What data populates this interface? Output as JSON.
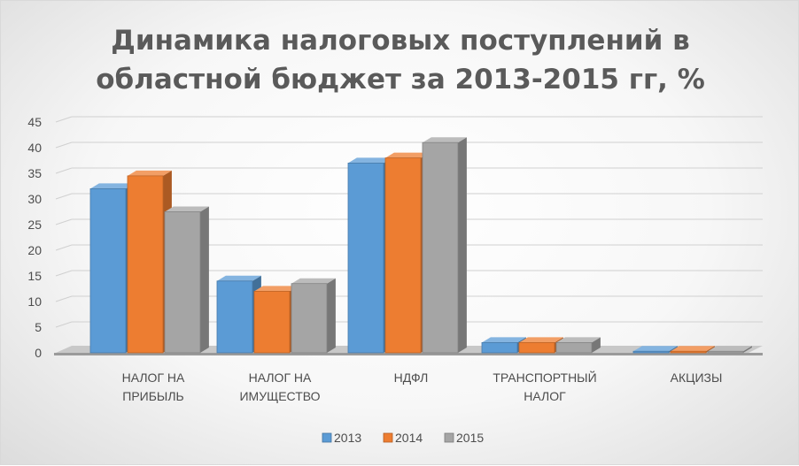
{
  "chart_data": {
    "type": "bar",
    "title_lines": [
      "Динамика налоговых поступлений в",
      "областной бюджет за 2013-2015 гг, %"
    ],
    "categories": [
      [
        "НАЛОГ НА",
        "ПРИБЫЛЬ"
      ],
      [
        "НАЛОГ НА",
        "ИМУЩЕСТВО"
      ],
      [
        "НДФЛ"
      ],
      [
        "ТРАНСПОРТНЫЙ",
        "НАЛОГ"
      ],
      [
        "АКЦИЗЫ"
      ]
    ],
    "series": [
      {
        "name": "2013",
        "values": [
          32,
          14,
          37,
          2,
          0.3
        ],
        "color": "#5b9bd5"
      },
      {
        "name": "2014",
        "values": [
          34.5,
          12,
          38,
          2,
          0.3
        ],
        "color": "#ed7d31"
      },
      {
        "name": "2015",
        "values": [
          27.5,
          13.5,
          41,
          2,
          0.3
        ],
        "color": "#a5a5a5"
      }
    ],
    "ylim": [
      0,
      45
    ],
    "yticks": [
      0,
      5,
      10,
      15,
      20,
      25,
      30,
      35,
      40,
      45
    ],
    "grid": true,
    "legend_position": "bottom"
  }
}
